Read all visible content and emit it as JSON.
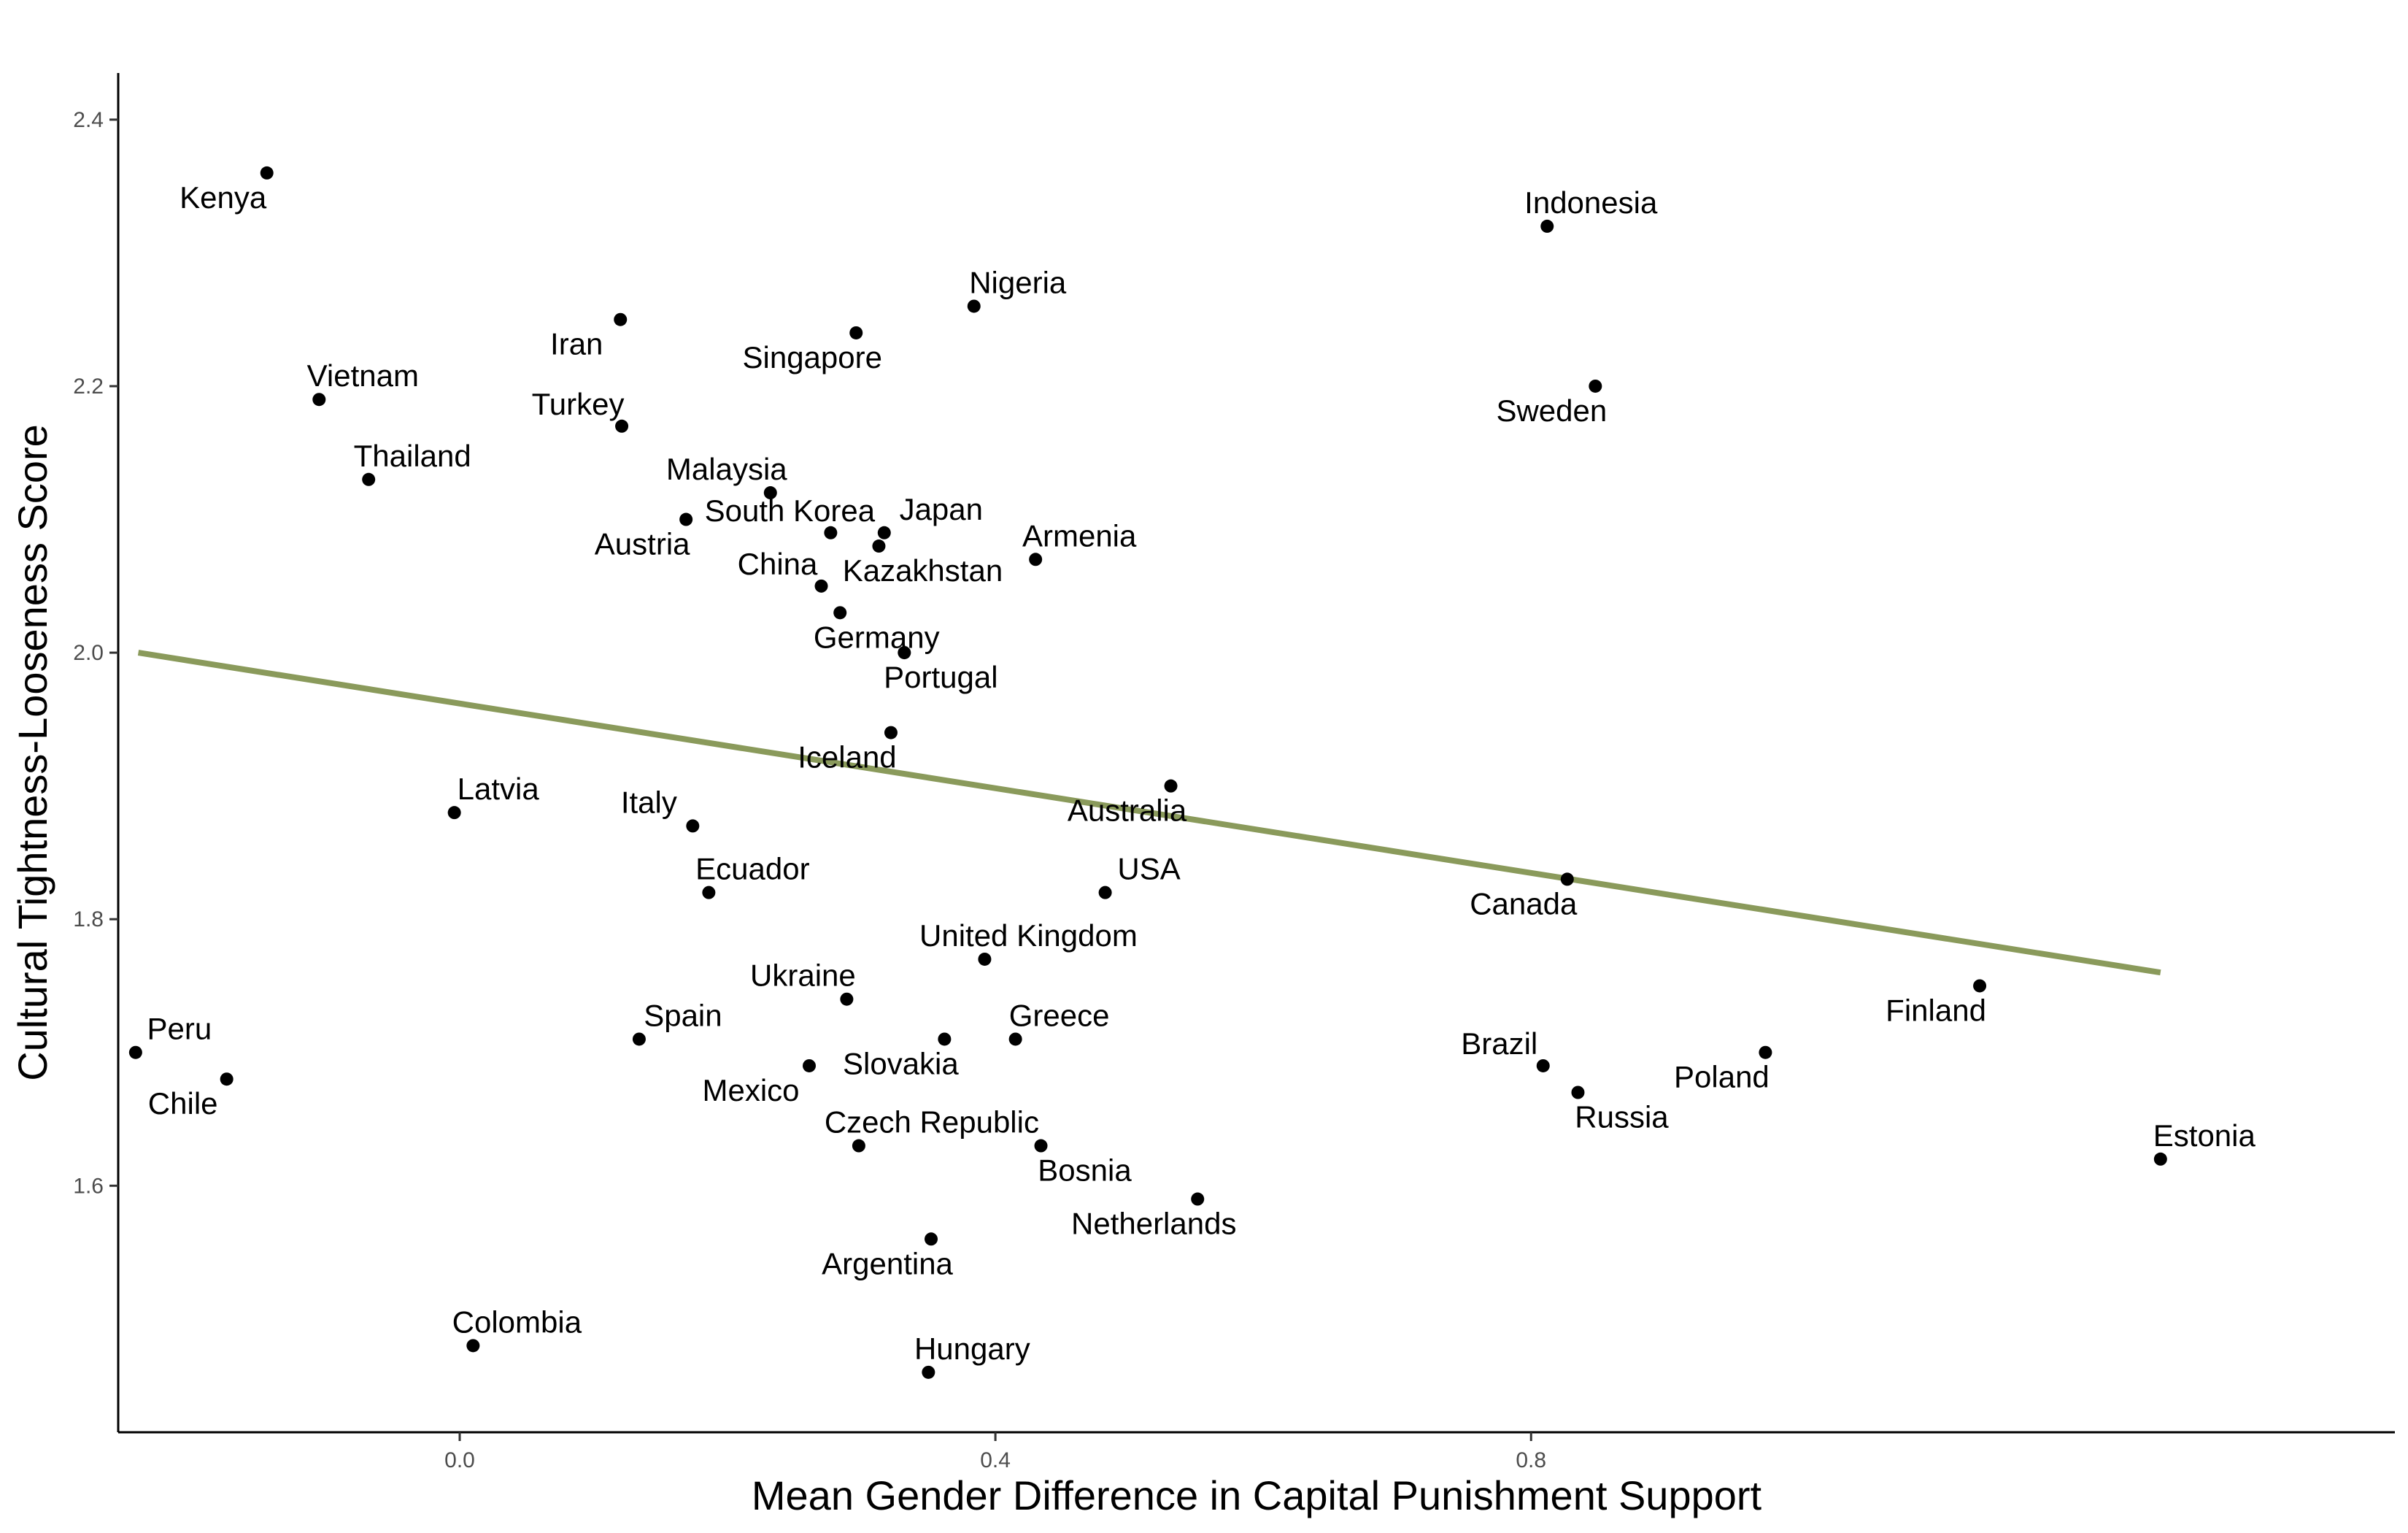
{
  "chart_data": {
    "type": "scatter",
    "title": "",
    "xlabel": "Mean Gender Difference in Capital Punishment Support",
    "ylabel": "Cultural Tightness-Looseness Score",
    "xlim": [
      -0.255,
      1.445
    ],
    "ylim": [
      1.415,
      2.435
    ],
    "xticks": [
      0.0,
      0.4,
      0.8
    ],
    "xtick_labels": [
      "0.0",
      "0.4",
      "0.8"
    ],
    "yticks": [
      1.6,
      1.8,
      2.0,
      2.2,
      2.4
    ],
    "ytick_labels": [
      "1.6",
      "1.8",
      "2.0",
      "2.2",
      "2.4"
    ],
    "grid": false,
    "point_color": "#000000",
    "trend_color": "#8a9a5b",
    "trendline": {
      "x": [
        -0.24,
        1.27
      ],
      "y": [
        2.0,
        1.76
      ]
    },
    "points": [
      {
        "label": "Kenya",
        "x": -0.144,
        "y": 2.36
      },
      {
        "label": "Indonesia",
        "x": 0.812,
        "y": 2.32
      },
      {
        "label": "Nigeria",
        "x": 0.384,
        "y": 2.26
      },
      {
        "label": "Iran",
        "x": 0.12,
        "y": 2.25
      },
      {
        "label": "Singapore",
        "x": 0.296,
        "y": 2.24
      },
      {
        "label": "Sweden",
        "x": 0.848,
        "y": 2.2
      },
      {
        "label": "Vietnam",
        "x": -0.105,
        "y": 2.19
      },
      {
        "label": "Turkey",
        "x": 0.121,
        "y": 2.17
      },
      {
        "label": "Thailand",
        "x": -0.068,
        "y": 2.13
      },
      {
        "label": "Malaysia",
        "x": 0.232,
        "y": 2.12
      },
      {
        "label": "Austria",
        "x": 0.169,
        "y": 2.1
      },
      {
        "label": "South Korea",
        "x": 0.277,
        "y": 2.09
      },
      {
        "label": "Japan",
        "x": 0.317,
        "y": 2.09
      },
      {
        "label": "Kazakhstan",
        "x": 0.313,
        "y": 2.08
      },
      {
        "label": "Armenia",
        "x": 0.43,
        "y": 2.07
      },
      {
        "label": "China",
        "x": 0.27,
        "y": 2.05
      },
      {
        "label": "Germany",
        "x": 0.284,
        "y": 2.03
      },
      {
        "label": "Portugal",
        "x": 0.332,
        "y": 2.0
      },
      {
        "label": "Iceland",
        "x": 0.322,
        "y": 1.94
      },
      {
        "label": "Australia",
        "x": 0.531,
        "y": 1.9
      },
      {
        "label": "Latvia",
        "x": -0.004,
        "y": 1.88
      },
      {
        "label": "Italy",
        "x": 0.174,
        "y": 1.87
      },
      {
        "label": "Canada",
        "x": 0.827,
        "y": 1.83
      },
      {
        "label": "Ecuador",
        "x": 0.186,
        "y": 1.82
      },
      {
        "label": "USA",
        "x": 0.482,
        "y": 1.82
      },
      {
        "label": "United Kingdom",
        "x": 0.392,
        "y": 1.77
      },
      {
        "label": "Finland",
        "x": 1.135,
        "y": 1.75
      },
      {
        "label": "Ukraine",
        "x": 0.289,
        "y": 1.74
      },
      {
        "label": "Spain",
        "x": 0.134,
        "y": 1.71
      },
      {
        "label": "Slovakia",
        "x": 0.362,
        "y": 1.71
      },
      {
        "label": "Greece",
        "x": 0.415,
        "y": 1.71
      },
      {
        "label": "Peru",
        "x": -0.242,
        "y": 1.7
      },
      {
        "label": "Poland",
        "x": 0.975,
        "y": 1.7
      },
      {
        "label": "Mexico",
        "x": 0.261,
        "y": 1.69
      },
      {
        "label": "Brazil",
        "x": 0.809,
        "y": 1.69
      },
      {
        "label": "Chile",
        "x": -0.174,
        "y": 1.68
      },
      {
        "label": "Russia",
        "x": 0.835,
        "y": 1.67
      },
      {
        "label": "Czech Republic",
        "x": 0.298,
        "y": 1.63
      },
      {
        "label": "Bosnia",
        "x": 0.434,
        "y": 1.63
      },
      {
        "label": "Estonia",
        "x": 1.27,
        "y": 1.62
      },
      {
        "label": "Netherlands",
        "x": 0.551,
        "y": 1.59
      },
      {
        "label": "Argentina",
        "x": 0.352,
        "y": 1.56
      },
      {
        "label": "Colombia",
        "x": 0.01,
        "y": 1.48
      },
      {
        "label": "Hungary",
        "x": 0.35,
        "y": 1.46
      }
    ]
  }
}
